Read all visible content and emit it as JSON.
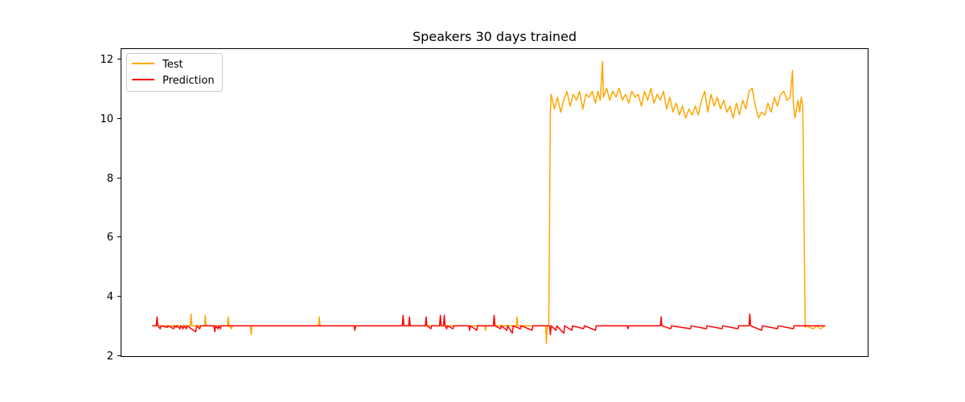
{
  "chart_data": {
    "type": "line",
    "title": "Speakers 30 days trained",
    "xlabel": "",
    "ylabel": "",
    "ylim": [
      1.95,
      12.35
    ],
    "xlim": [
      -40,
      905
    ],
    "yticks": [
      2,
      4,
      6,
      8,
      10,
      12
    ],
    "xticks_visible": false,
    "grid": false,
    "legend": "top-left",
    "series": [
      {
        "name": "Test",
        "color": "#FFA500",
        "baseline": 3.0,
        "points": [
          [
            0,
            3.0
          ],
          [
            48,
            3.0
          ],
          [
            49,
            3.4
          ],
          [
            50,
            3.0
          ],
          [
            66,
            3.0
          ],
          [
            67,
            3.35
          ],
          [
            68,
            3.0
          ],
          [
            95,
            3.0
          ],
          [
            96,
            3.3
          ],
          [
            97,
            3.0
          ],
          [
            100,
            2.9
          ],
          [
            101,
            3.0
          ],
          [
            124,
            3.0
          ],
          [
            125,
            2.7
          ],
          [
            126,
            3.0
          ],
          [
            210,
            3.0
          ],
          [
            211,
            3.3
          ],
          [
            212,
            3.0
          ],
          [
            420,
            3.0
          ],
          [
            421,
            2.85
          ],
          [
            422,
            3.0
          ],
          [
            460,
            3.0
          ],
          [
            461,
            3.3
          ],
          [
            462,
            3.0
          ],
          [
            497,
            3.0
          ],
          [
            498,
            2.4
          ],
          [
            499,
            3.0
          ],
          [
            501,
            3.0
          ],
          [
            503,
            10.2
          ],
          [
            504,
            10.8
          ],
          [
            508,
            10.3
          ],
          [
            512,
            10.7
          ],
          [
            516,
            10.2
          ],
          [
            520,
            10.6
          ],
          [
            524,
            10.9
          ],
          [
            528,
            10.4
          ],
          [
            532,
            10.8
          ],
          [
            536,
            10.6
          ],
          [
            540,
            10.9
          ],
          [
            544,
            10.3
          ],
          [
            548,
            10.8
          ],
          [
            552,
            10.7
          ],
          [
            556,
            10.9
          ],
          [
            560,
            10.5
          ],
          [
            563,
            10.9
          ],
          [
            566,
            10.6
          ],
          [
            569,
            11.9
          ],
          [
            570,
            10.7
          ],
          [
            574,
            11.0
          ],
          [
            578,
            10.6
          ],
          [
            582,
            10.9
          ],
          [
            586,
            10.7
          ],
          [
            590,
            11.0
          ],
          [
            594,
            10.6
          ],
          [
            598,
            10.8
          ],
          [
            602,
            10.5
          ],
          [
            606,
            10.9
          ],
          [
            610,
            10.7
          ],
          [
            614,
            10.8
          ],
          [
            618,
            10.4
          ],
          [
            622,
            10.9
          ],
          [
            626,
            10.6
          ],
          [
            630,
            11.0
          ],
          [
            634,
            10.5
          ],
          [
            638,
            10.8
          ],
          [
            642,
            10.6
          ],
          [
            646,
            10.9
          ],
          [
            650,
            10.3
          ],
          [
            654,
            10.7
          ],
          [
            658,
            10.2
          ],
          [
            662,
            10.5
          ],
          [
            666,
            10.1
          ],
          [
            670,
            10.4
          ],
          [
            674,
            10.0
          ],
          [
            678,
            10.3
          ],
          [
            682,
            10.1
          ],
          [
            686,
            10.4
          ],
          [
            690,
            10.1
          ],
          [
            694,
            10.6
          ],
          [
            698,
            10.9
          ],
          [
            702,
            10.2
          ],
          [
            706,
            10.8
          ],
          [
            710,
            10.4
          ],
          [
            714,
            10.7
          ],
          [
            718,
            10.3
          ],
          [
            722,
            10.6
          ],
          [
            726,
            10.2
          ],
          [
            730,
            10.4
          ],
          [
            734,
            10.0
          ],
          [
            738,
            10.5
          ],
          [
            742,
            10.1
          ],
          [
            746,
            10.6
          ],
          [
            750,
            10.3
          ],
          [
            754,
            10.9
          ],
          [
            758,
            11.0
          ],
          [
            762,
            10.4
          ],
          [
            766,
            10.0
          ],
          [
            770,
            10.2
          ],
          [
            774,
            10.1
          ],
          [
            778,
            10.5
          ],
          [
            782,
            10.2
          ],
          [
            786,
            10.7
          ],
          [
            790,
            10.4
          ],
          [
            794,
            10.8
          ],
          [
            798,
            10.9
          ],
          [
            802,
            10.6
          ],
          [
            806,
            10.7
          ],
          [
            809,
            11.6
          ],
          [
            810,
            10.5
          ],
          [
            812,
            10.0
          ],
          [
            816,
            10.6
          ],
          [
            818,
            10.2
          ],
          [
            820,
            10.7
          ],
          [
            822,
            10.4
          ],
          [
            825,
            2.95
          ],
          [
            826,
            3.0
          ],
          [
            835,
            2.9
          ],
          [
            840,
            3.0
          ],
          [
            844,
            2.9
          ],
          [
            850,
            3.0
          ]
        ]
      },
      {
        "name": "Prediction",
        "color": "#FF0000",
        "baseline": 3.0,
        "points": [
          [
            0,
            3.0
          ],
          [
            5,
            3.0
          ],
          [
            6,
            3.3
          ],
          [
            7,
            3.0
          ],
          [
            10,
            2.9
          ],
          [
            11,
            3.0
          ],
          [
            19,
            2.95
          ],
          [
            20,
            3.0
          ],
          [
            27,
            2.9
          ],
          [
            28,
            3.0
          ],
          [
            30,
            2.95
          ],
          [
            31,
            3.0
          ],
          [
            35,
            2.9
          ],
          [
            36,
            3.0
          ],
          [
            39,
            2.9
          ],
          [
            40,
            3.0
          ],
          [
            43,
            2.9
          ],
          [
            44,
            3.0
          ],
          [
            55,
            2.8
          ],
          [
            56,
            3.0
          ],
          [
            60,
            2.9
          ],
          [
            61,
            3.0
          ],
          [
            78,
            3.0
          ],
          [
            79,
            2.8
          ],
          [
            80,
            3.0
          ],
          [
            83,
            2.9
          ],
          [
            84,
            3.0
          ],
          [
            86,
            2.9
          ],
          [
            87,
            3.0
          ],
          [
            255,
            3.0
          ],
          [
            256,
            2.85
          ],
          [
            257,
            3.0
          ],
          [
            316,
            3.0
          ],
          [
            317,
            3.35
          ],
          [
            318,
            3.0
          ],
          [
            324,
            3.0
          ],
          [
            325,
            3.3
          ],
          [
            326,
            3.0
          ],
          [
            345,
            3.0
          ],
          [
            346,
            3.3
          ],
          [
            347,
            3.0
          ],
          [
            352,
            2.9
          ],
          [
            353,
            3.0
          ],
          [
            363,
            3.0
          ],
          [
            364,
            3.35
          ],
          [
            365,
            3.0
          ],
          [
            368,
            3.0
          ],
          [
            369,
            3.35
          ],
          [
            370,
            3.0
          ],
          [
            372,
            2.9
          ],
          [
            373,
            3.0
          ],
          [
            380,
            2.9
          ],
          [
            381,
            3.0
          ],
          [
            400,
            3.0
          ],
          [
            401,
            2.85
          ],
          [
            402,
            3.0
          ],
          [
            410,
            2.85
          ],
          [
            411,
            3.0
          ],
          [
            420,
            3.0
          ],
          [
            431,
            3.0
          ],
          [
            432,
            3.35
          ],
          [
            433,
            3.0
          ],
          [
            440,
            2.9
          ],
          [
            441,
            3.0
          ],
          [
            448,
            2.85
          ],
          [
            449,
            3.0
          ],
          [
            455,
            2.75
          ],
          [
            456,
            3.0
          ],
          [
            465,
            2.9
          ],
          [
            466,
            3.0
          ],
          [
            480,
            2.85
          ],
          [
            481,
            3.0
          ],
          [
            502,
            3.0
          ],
          [
            503,
            2.7
          ],
          [
            504,
            3.0
          ],
          [
            510,
            2.85
          ],
          [
            511,
            3.0
          ],
          [
            520,
            2.75
          ],
          [
            521,
            3.0
          ],
          [
            530,
            2.85
          ],
          [
            531,
            3.0
          ],
          [
            545,
            2.9
          ],
          [
            546,
            3.0
          ],
          [
            560,
            2.85
          ],
          [
            561,
            3.0
          ],
          [
            600,
            3.0
          ],
          [
            601,
            2.9
          ],
          [
            602,
            3.0
          ],
          [
            642,
            3.0
          ],
          [
            643,
            3.3
          ],
          [
            644,
            3.0
          ],
          [
            655,
            2.9
          ],
          [
            656,
            3.0
          ],
          [
            680,
            2.9
          ],
          [
            681,
            3.0
          ],
          [
            700,
            2.9
          ],
          [
            701,
            3.0
          ],
          [
            720,
            2.9
          ],
          [
            721,
            3.0
          ],
          [
            740,
            2.9
          ],
          [
            741,
            3.0
          ],
          [
            754,
            3.0
          ],
          [
            755,
            3.4
          ],
          [
            756,
            3.0
          ],
          [
            770,
            2.85
          ],
          [
            771,
            3.0
          ],
          [
            790,
            2.9
          ],
          [
            791,
            3.0
          ],
          [
            810,
            2.9
          ],
          [
            811,
            3.0
          ],
          [
            850,
            3.0
          ]
        ]
      }
    ]
  }
}
